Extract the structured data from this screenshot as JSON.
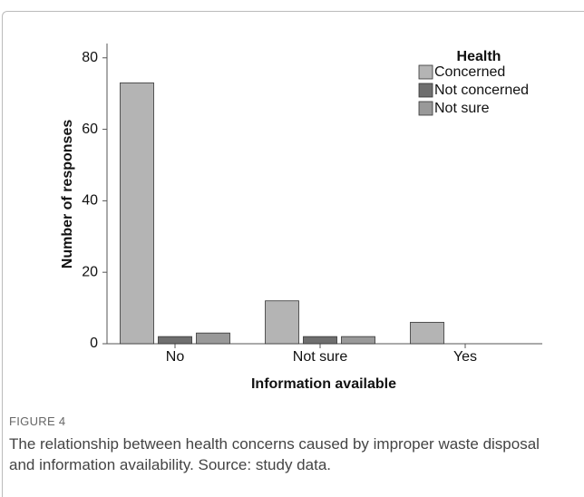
{
  "chart_data": {
    "type": "bar",
    "y_label": "Number of responses",
    "x_label": "Information available",
    "legend_title": "Health",
    "legend_position": "upper right",
    "categories": [
      "No",
      "Not sure",
      "Yes"
    ],
    "series": [
      {
        "name": "Concerned",
        "color": "#b4b4b4",
        "values": [
          73,
          12,
          6
        ]
      },
      {
        "name": "Not concerned",
        "color": "#6f6f6f",
        "values": [
          2,
          2,
          0
        ]
      },
      {
        "name": "Not sure",
        "color": "#999999",
        "values": [
          3,
          2,
          0
        ]
      }
    ],
    "ylim": [
      0,
      84
    ],
    "yticks": [
      0,
      20,
      40,
      60,
      80
    ]
  },
  "caption": {
    "label": "FIGURE 4",
    "text": "The relationship between health concerns caused by improper waste disposal and information availability. Source: study data."
  }
}
